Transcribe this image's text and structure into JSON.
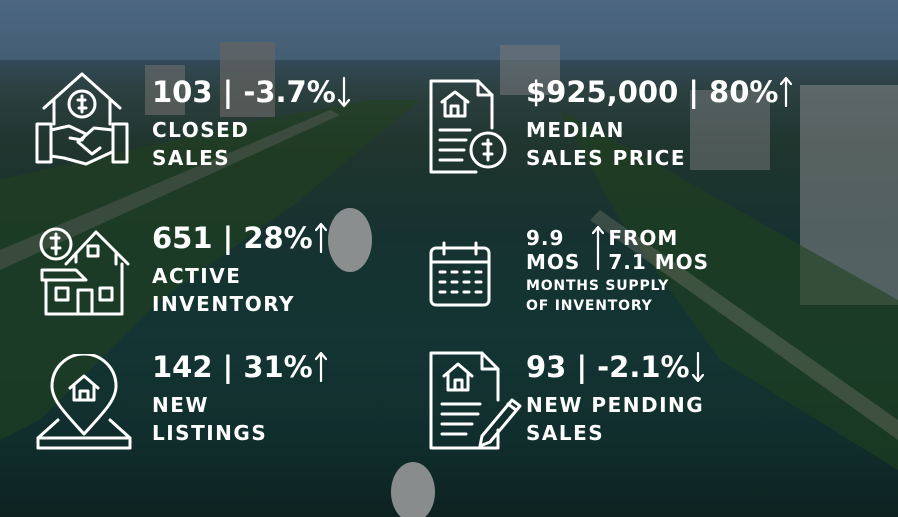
{
  "stats": [
    {
      "headline": "103 | -3.7%",
      "trend": "down",
      "label": [
        "CLOSED",
        "SALES"
      ]
    },
    {
      "headline": "$925,000 | 80%",
      "trend": "up",
      "label": [
        "MEDIAN",
        "SALES PRICE"
      ]
    },
    {
      "headline": "651 | 28%",
      "trend": "up",
      "label": [
        "ACTIVE",
        "INVENTORY"
      ]
    },
    {
      "headline": "142 | 31%",
      "trend": "up",
      "label": [
        "NEW",
        "LISTINGS"
      ]
    },
    {
      "headline": "93 | -2.1%",
      "trend": "down",
      "label": [
        "NEW PENDING",
        "SALES"
      ]
    }
  ],
  "supply": {
    "value": [
      "9.9",
      "MOS"
    ],
    "trend": "up",
    "from": [
      "FROM",
      "7.1 MOS"
    ],
    "caption": [
      "MONTHS SUPPLY",
      "OF INVENTORY"
    ]
  }
}
